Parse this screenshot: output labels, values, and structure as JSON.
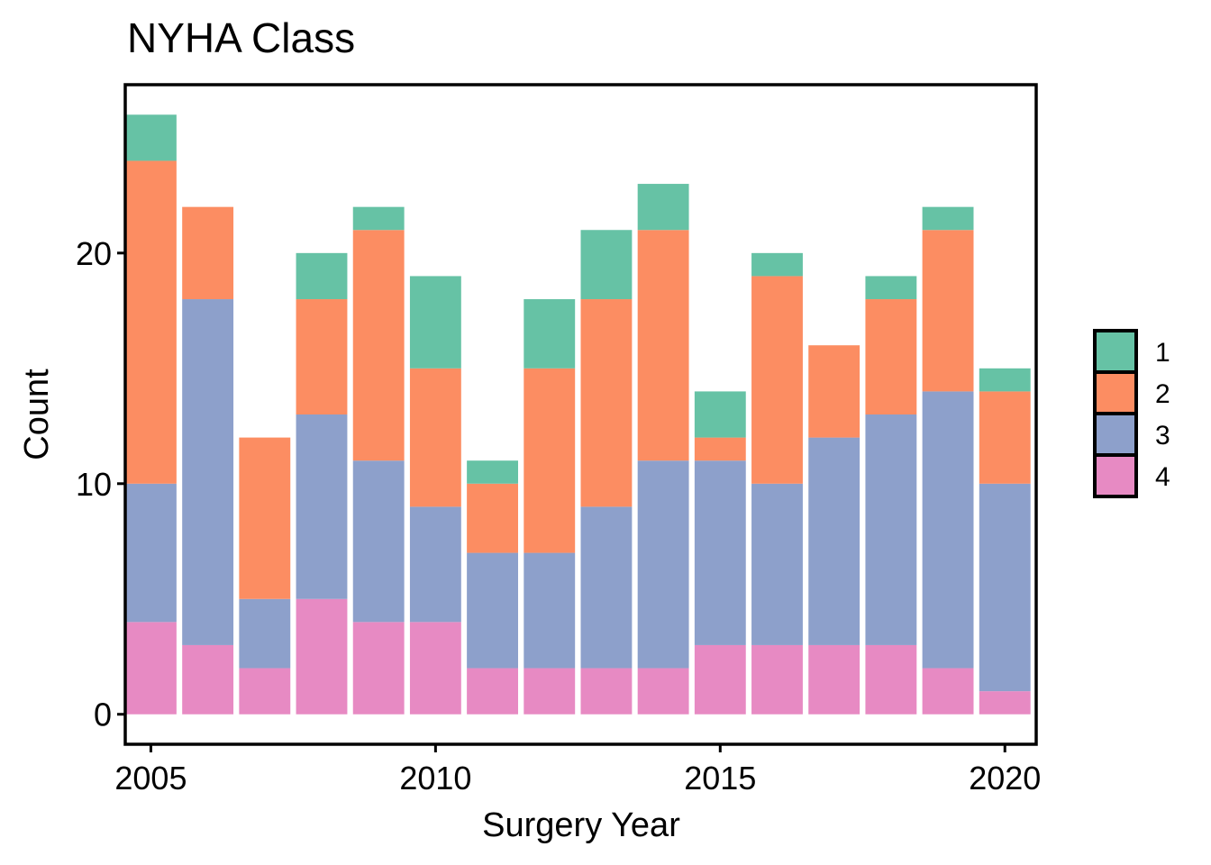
{
  "chart_data": {
    "type": "bar",
    "stacked": true,
    "title": "NYHA Class",
    "xlabel": "Surgery Year",
    "ylabel": "Count",
    "x": [
      2005,
      2006,
      2007,
      2008,
      2009,
      2010,
      2011,
      2012,
      2013,
      2014,
      2015,
      2016,
      2017,
      2018,
      2019,
      2020
    ],
    "x_ticks": [
      2005,
      2010,
      2015,
      2020
    ],
    "y_ticks": [
      0,
      10,
      20
    ],
    "xlim": [
      2004.55,
      2020.55
    ],
    "ylim": [
      -1.3,
      27.3
    ],
    "legend": {
      "title": "",
      "position": "right"
    },
    "series": [
      {
        "name": "4",
        "color": "#e78ac3",
        "values": [
          4,
          3,
          2,
          5,
          4,
          4,
          2,
          2,
          2,
          2,
          3,
          3,
          3,
          3,
          2,
          1
        ]
      },
      {
        "name": "3",
        "color": "#8da0cb",
        "values": [
          6,
          15,
          3,
          8,
          7,
          5,
          5,
          5,
          7,
          9,
          8,
          7,
          9,
          10,
          12,
          9
        ]
      },
      {
        "name": "2",
        "color": "#fc8d62",
        "values": [
          14,
          4,
          7,
          5,
          10,
          6,
          3,
          8,
          9,
          10,
          1,
          9,
          4,
          5,
          7,
          4
        ]
      },
      {
        "name": "1",
        "color": "#66c2a5",
        "values": [
          2,
          0,
          0,
          2,
          1,
          4,
          1,
          3,
          3,
          2,
          2,
          1,
          0,
          1,
          1,
          1
        ]
      }
    ],
    "legend_order": [
      "1",
      "2",
      "3",
      "4"
    ]
  }
}
